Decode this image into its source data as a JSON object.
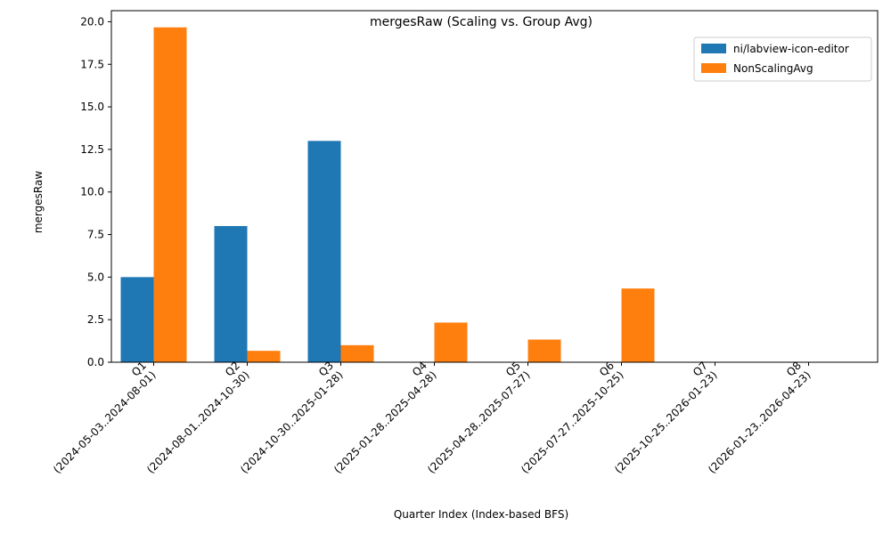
{
  "chart_data": {
    "type": "bar",
    "title": "mergesRaw (Scaling vs. Group Avg)",
    "xlabel": "Quarter Index (Index-based BFS)",
    "ylabel": "mergesRaw",
    "categories": [
      [
        "Q1",
        "(2024-05-03..2024-08-01)"
      ],
      [
        "Q2",
        "(2024-08-01..2024-10-30)"
      ],
      [
        "Q3",
        "(2024-10-30..2025-01-28)"
      ],
      [
        "Q4",
        "(2025-01-28..2025-04-28)"
      ],
      [
        "Q5",
        "(2025-04-28..2025-07-27)"
      ],
      [
        "Q6",
        "(2025-07-27..2025-10-25)"
      ],
      [
        "Q7",
        "(2025-10-25..2026-01-23)"
      ],
      [
        "Q8",
        "(2026-01-23..2026-04-23)"
      ]
    ],
    "series": [
      {
        "name": "ni/labview-icon-editor",
        "color": "#1f77b4",
        "values": [
          5,
          8,
          13,
          0,
          0,
          0,
          0,
          0
        ]
      },
      {
        "name": "NonScalingAvg",
        "color": "#ff7f0e",
        "values": [
          19.67,
          0.67,
          1,
          2.33,
          1.33,
          4.33,
          0,
          0
        ]
      }
    ],
    "ylim": [
      0,
      20.65
    ],
    "yticks": [
      "0.0",
      "2.5",
      "5.0",
      "7.5",
      "10.0",
      "12.5",
      "15.0",
      "17.5",
      "20.0"
    ],
    "grid": false,
    "legend_position": "top-right"
  }
}
